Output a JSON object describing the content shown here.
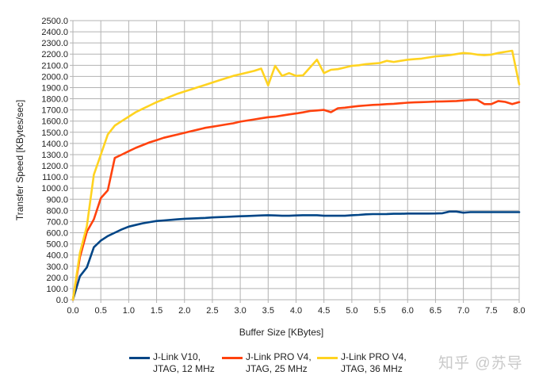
{
  "chart_data": {
    "type": "line",
    "title": "",
    "xlabel": "Buffer Size [KBytes]",
    "ylabel": "Transfer Speed [KBytes/sec]",
    "xlim": [
      0,
      8
    ],
    "ylim": [
      0,
      2500
    ],
    "grid": true,
    "legend_position": "bottom",
    "x_ticks": [
      "0.0",
      "0.5",
      "1.0",
      "1.5",
      "2.0",
      "2.5",
      "3.0",
      "3.5",
      "4.0",
      "4.5",
      "5.0",
      "5.5",
      "6.0",
      "6.5",
      "7.0",
      "7.5",
      "8.0"
    ],
    "y_ticks": [
      "0.0",
      "100.0",
      "200.0",
      "300.0",
      "400.0",
      "500.0",
      "600.0",
      "700.0",
      "800.0",
      "900.0",
      "1000.0",
      "1100.0",
      "1200.0",
      "1300.0",
      "1400.0",
      "1500.0",
      "1600.0",
      "1700.0",
      "1800.0",
      "1900.0",
      "2000.0",
      "2100.0",
      "2200.0",
      "2300.0",
      "2400.0",
      "2500.0"
    ],
    "x": [
      0,
      0.125,
      0.25,
      0.375,
      0.5,
      0.625,
      0.75,
      0.875,
      1,
      1.125,
      1.25,
      1.375,
      1.5,
      1.625,
      1.75,
      1.875,
      2,
      2.125,
      2.25,
      2.375,
      2.5,
      2.625,
      2.75,
      2.875,
      3,
      3.125,
      3.25,
      3.375,
      3.5,
      3.625,
      3.75,
      3.875,
      4,
      4.125,
      4.25,
      4.375,
      4.5,
      4.625,
      4.75,
      4.875,
      5,
      5.125,
      5.25,
      5.375,
      5.5,
      5.625,
      5.75,
      5.875,
      6,
      6.125,
      6.25,
      6.375,
      6.5,
      6.625,
      6.75,
      6.875,
      7,
      7.125,
      7.25,
      7.375,
      7.5,
      7.625,
      7.75,
      7.875,
      8
    ],
    "series": [
      {
        "name": "J-Link V10, JTAG, 12 MHz",
        "color": "#004586",
        "values": [
          0,
          210,
          290,
          470,
          530,
          570,
          600,
          630,
          655,
          670,
          685,
          695,
          705,
          710,
          715,
          720,
          725,
          727,
          730,
          733,
          737,
          740,
          742,
          745,
          748,
          750,
          752,
          755,
          757,
          755,
          752,
          752,
          755,
          757,
          757,
          757,
          752,
          752,
          752,
          752,
          757,
          760,
          765,
          767,
          767,
          768,
          770,
          770,
          772,
          772,
          772,
          772,
          773,
          775,
          790,
          790,
          780,
          785,
          785,
          785,
          785,
          785,
          785,
          785,
          785
        ]
      },
      {
        "name": "J-Link PRO V4, JTAG, 25 MHz",
        "color": "#ff420e",
        "values": [
          0,
          380,
          610,
          720,
          910,
          980,
          1270,
          1300,
          1330,
          1360,
          1385,
          1410,
          1430,
          1450,
          1465,
          1480,
          1495,
          1510,
          1525,
          1540,
          1550,
          1560,
          1570,
          1580,
          1595,
          1605,
          1615,
          1625,
          1635,
          1640,
          1650,
          1660,
          1668,
          1678,
          1690,
          1695,
          1700,
          1680,
          1715,
          1720,
          1728,
          1735,
          1740,
          1745,
          1748,
          1752,
          1755,
          1760,
          1765,
          1768,
          1770,
          1772,
          1775,
          1776,
          1778,
          1780,
          1785,
          1790,
          1790,
          1752,
          1752,
          1780,
          1772,
          1752,
          1770
        ]
      },
      {
        "name": "J-Link PRO V4, JTAG, 36 MHz",
        "color": "#ffd320",
        "values": [
          0,
          420,
          660,
          1120,
          1300,
          1480,
          1560,
          1600,
          1640,
          1680,
          1710,
          1740,
          1770,
          1795,
          1820,
          1845,
          1865,
          1885,
          1905,
          1925,
          1945,
          1965,
          1985,
          2005,
          2020,
          2035,
          2050,
          2070,
          1920,
          2095,
          2005,
          2030,
          2005,
          2010,
          2080,
          2150,
          2030,
          2060,
          2065,
          2080,
          2095,
          2100,
          2110,
          2115,
          2120,
          2140,
          2130,
          2140,
          2150,
          2155,
          2160,
          2170,
          2180,
          2185,
          2190,
          2200,
          2210,
          2205,
          2195,
          2190,
          2195,
          2210,
          2220,
          2230,
          1930
        ]
      }
    ]
  },
  "legend": {
    "items": [
      {
        "label": "J-Link V10,\nJTAG, 12 MHz",
        "color": "#004586"
      },
      {
        "label": "J-Link PRO V4,\nJTAG, 25 MHz",
        "color": "#ff420e"
      },
      {
        "label": "J-Link PRO V4,\nJTAG, 36 MHz",
        "color": "#ffd320"
      }
    ]
  },
  "watermark": "知乎 @苏导"
}
